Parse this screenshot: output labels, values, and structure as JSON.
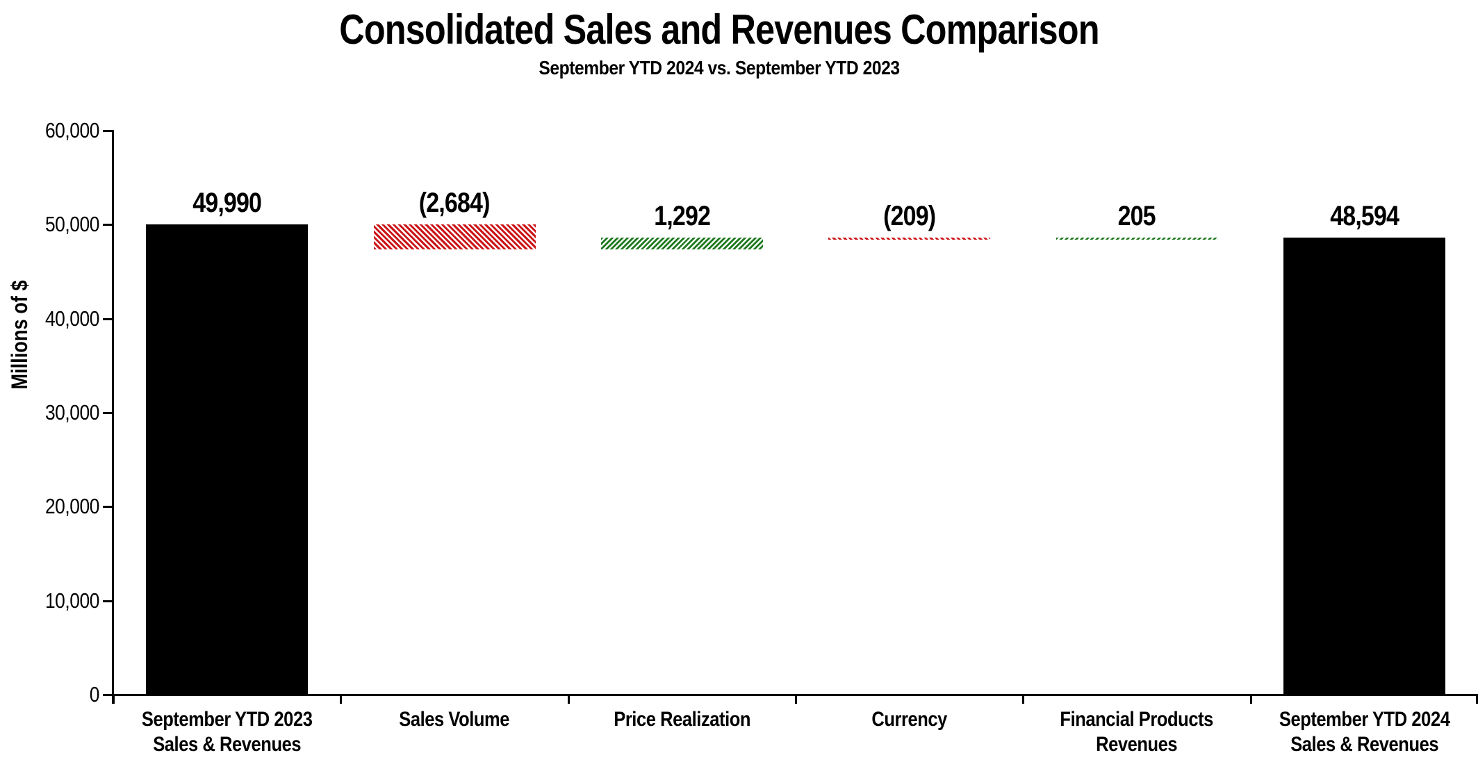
{
  "page": {
    "background": "#ffffff"
  },
  "header": {
    "title": "Consolidated Sales and Revenues Comparison",
    "subtitle": "September YTD 2024 vs. September YTD 2023"
  },
  "chart_data": {
    "type": "bar",
    "subtype": "waterfall",
    "title": "Consolidated Sales and Revenues Comparison",
    "subtitle": "September YTD 2024 vs. September YTD 2023",
    "ylabel": "Millions of $",
    "xlabel": "",
    "ylim": [
      0,
      60000
    ],
    "ytick_values": [
      0,
      10000,
      20000,
      30000,
      40000,
      50000,
      60000
    ],
    "ytick_labels": [
      "0",
      "10,000",
      "20,000",
      "30,000",
      "40,000",
      "50,000",
      "60,000"
    ],
    "grid": false,
    "legend": "none",
    "bar_styles": {
      "total": {
        "fill": "solid",
        "color": "#000000"
      },
      "decrease": {
        "fill": "diagonal-hatch-down",
        "color": "#cc1518"
      },
      "increase": {
        "fill": "diagonal-hatch-up",
        "color": "#1f7a1f"
      }
    },
    "categories": [
      {
        "label_lines": [
          "September YTD 2023",
          "Sales & Revenues"
        ],
        "kind": "total",
        "value": 49990,
        "value_label": "49,990",
        "start": 0,
        "end": 49990
      },
      {
        "label_lines": [
          "Sales Volume"
        ],
        "kind": "decrease",
        "value": -2684,
        "value_label": "(2,684)",
        "start": 49990,
        "end": 47306
      },
      {
        "label_lines": [
          "Price Realization"
        ],
        "kind": "increase",
        "value": 1292,
        "value_label": "1,292",
        "start": 47306,
        "end": 48598
      },
      {
        "label_lines": [
          "Currency"
        ],
        "kind": "decrease",
        "value": -209,
        "value_label": "(209)",
        "start": 48598,
        "end": 48389
      },
      {
        "label_lines": [
          "Financial Products",
          "Revenues"
        ],
        "kind": "increase",
        "value": 205,
        "value_label": "205",
        "start": 48389,
        "end": 48594
      },
      {
        "label_lines": [
          "September YTD 2024",
          "Sales & Revenues"
        ],
        "kind": "total",
        "value": 48594,
        "value_label": "48,594",
        "start": 0,
        "end": 48594
      }
    ]
  }
}
